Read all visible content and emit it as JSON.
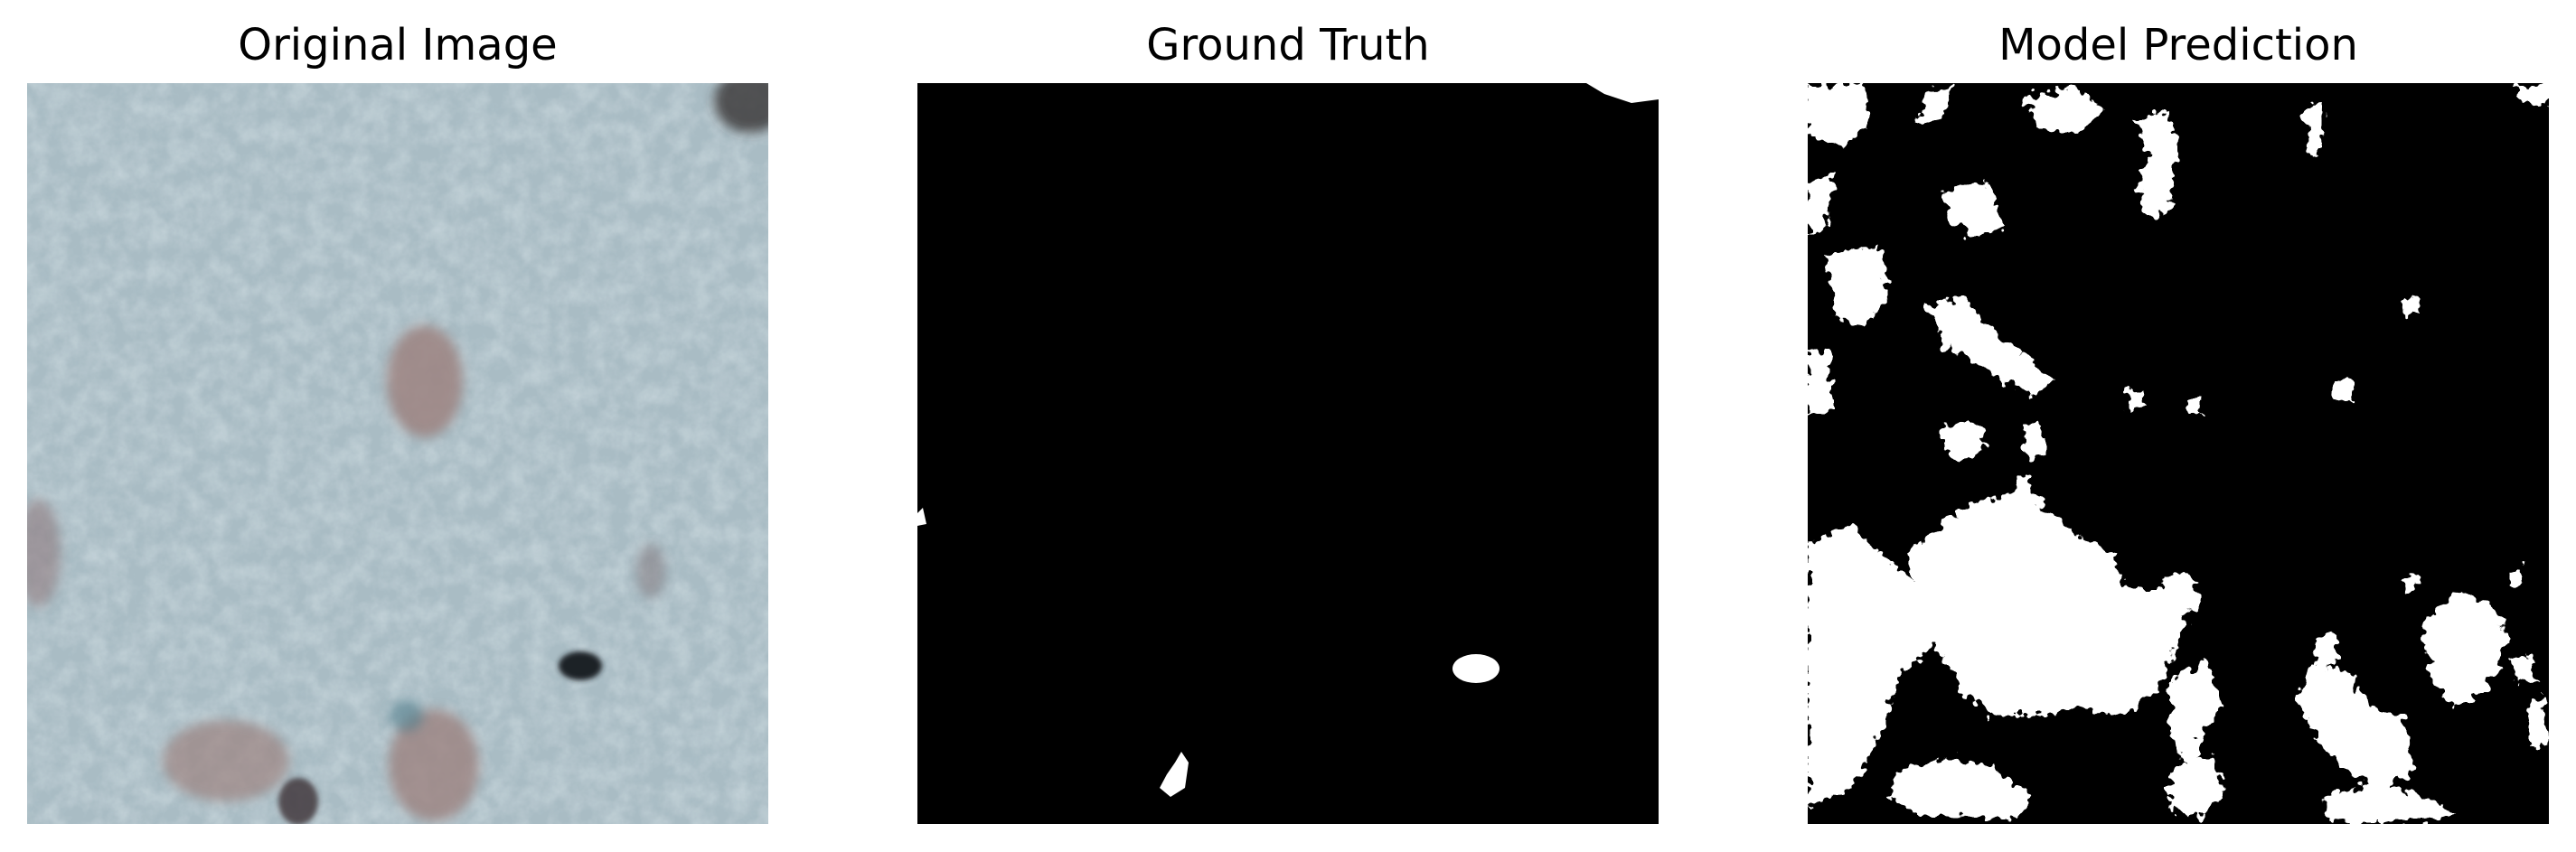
{
  "figure": {
    "panels": [
      {
        "title": "Original Image"
      },
      {
        "title": "Ground Truth"
      },
      {
        "title": "Model Prediction"
      }
    ]
  },
  "colors": {
    "background": "#ffffff",
    "mask_background": "#000000",
    "mask_foreground": "#ffffff",
    "tissue_base": "#a9bcc4",
    "tissue_light": "#c9d6db",
    "nucleus_brown": "#9c8380",
    "stain_dark": "#1e2228"
  }
}
